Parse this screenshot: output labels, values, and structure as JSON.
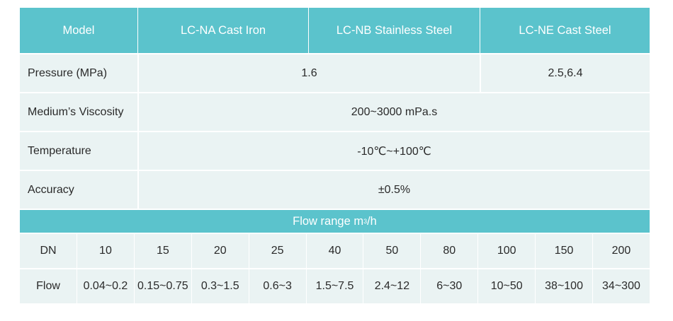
{
  "header": {
    "col0": "Model",
    "col1": "LC-NA Cast Iron",
    "col2": "LC-NB Stainless Steel",
    "col3": "LC-NE Cast Steel"
  },
  "rows": {
    "pressure": {
      "label": "Pressure (MPa)",
      "value_ab": "1.6",
      "value_c": "2.5,6.4"
    },
    "viscosity": {
      "label": "Medium’s Viscosity",
      "value": "200~3000 mPa.s"
    },
    "temperature": {
      "label": "Temperature",
      "value": "-10℃~+100℃"
    },
    "accuracy": {
      "label": "Accuracy",
      "value": "±0.5%"
    }
  },
  "flow_range": {
    "title_prefix": "Flow range m",
    "title_sup": "3",
    "title_suffix": "/h"
  },
  "dn_row": [
    "DN",
    "10",
    "15",
    "20",
    "25",
    "40",
    "50",
    "80",
    "100",
    "150",
    "200"
  ],
  "flow_row": [
    "Flow",
    "0.04~0.2",
    "0.15~0.75",
    "0.3~1.5",
    "0.6~3",
    "1.5~7.5",
    "2.4~12",
    "6~30",
    "10~50",
    "38~100",
    "34~300"
  ],
  "colors": {
    "header": "#5bc3cc",
    "row_bg": "#eaf3f3",
    "text": "#2a2a2a"
  }
}
